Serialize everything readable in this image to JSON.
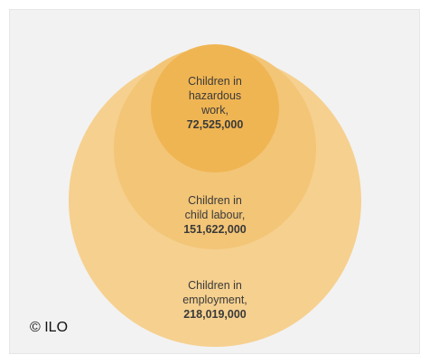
{
  "colors": {
    "outer": "#f6d08f",
    "middle": "#f3c577",
    "inner": "#f0b553",
    "background": "#f2f2f2"
  },
  "circles": {
    "outer": {
      "line1": "Children in",
      "line2": "employment,",
      "value": "218,019,000"
    },
    "middle": {
      "line1": "Children in",
      "line2": "child labour,",
      "value": "151,622,000"
    },
    "inner": {
      "line1": "Children in",
      "line2": "hazardous",
      "line3": "work,",
      "value": "72,525,000"
    }
  },
  "copyright": "© ILO"
}
